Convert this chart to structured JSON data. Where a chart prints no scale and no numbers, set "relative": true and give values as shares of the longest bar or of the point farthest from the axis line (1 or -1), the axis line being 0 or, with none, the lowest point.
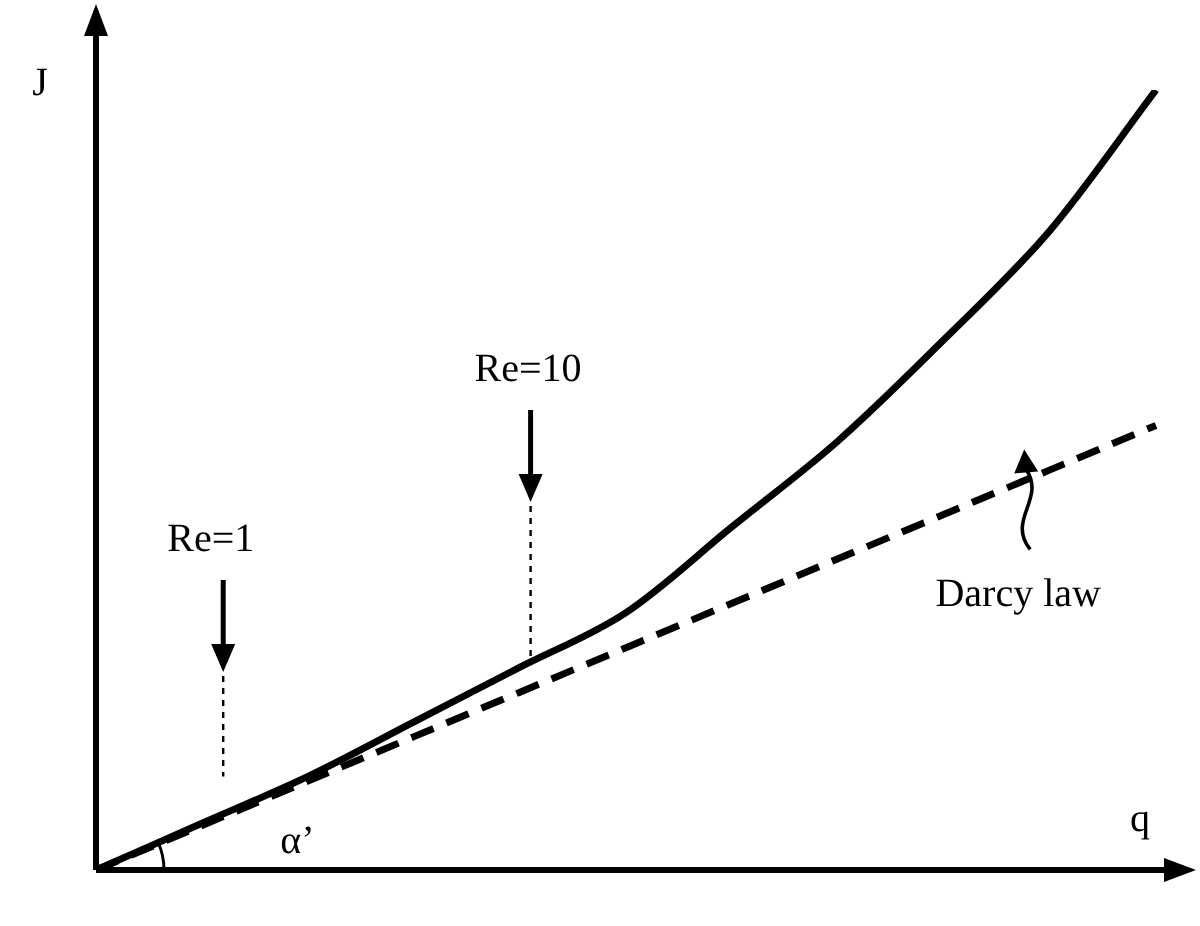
{
  "chart_data": {
    "type": "line",
    "relative": true,
    "xlabel": "q",
    "ylabel": "J",
    "marker": "none",
    "categories": [
      null,
      null,
      null,
      null,
      null,
      null,
      null,
      null,
      null,
      null,
      null
    ],
    "series": [
      {
        "color": "#000000",
        "line_style": "solid",
        "values": [
          0,
          0.06,
          0.12,
          0.19,
          0.26,
          0.33,
          0.44,
          0.55,
          0.68,
          0.82,
          1
        ]
      },
      {
        "name": "Darcy law",
        "color": "#000000",
        "line_style": "dashed",
        "values": [
          0,
          0.057,
          0.114,
          0.171,
          0.228,
          0.285,
          0.342,
          0.399,
          0.456,
          0.513,
          0.57
        ]
      }
    ],
    "annotations": [
      "Re=1",
      "Re=10",
      "α’"
    ]
  }
}
